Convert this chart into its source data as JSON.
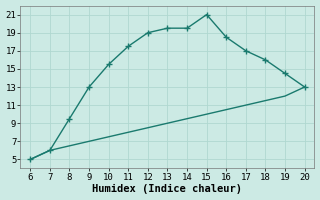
{
  "xlabel": "Humidex (Indice chaleur)",
  "bg_color": "#cceae4",
  "line_color": "#1a7a6e",
  "grid_color": "#b0d8d0",
  "x_upper": [
    6,
    7,
    8,
    9,
    10,
    11,
    12,
    13,
    14,
    15,
    16,
    17,
    18,
    19,
    20
  ],
  "y_upper": [
    5,
    6,
    9.5,
    13,
    15.5,
    17.5,
    19.0,
    19.5,
    19.5,
    21,
    18.5,
    17,
    16.0,
    14.5,
    13
  ],
  "x_lower": [
    6,
    7,
    8,
    9,
    10,
    11,
    12,
    13,
    14,
    15,
    16,
    17,
    18,
    19,
    20
  ],
  "y_lower": [
    5,
    6,
    6.5,
    7.0,
    7.5,
    8.0,
    8.5,
    9.0,
    9.5,
    10.0,
    10.5,
    11.0,
    11.5,
    12.0,
    13.0
  ],
  "xlim": [
    5.5,
    20.5
  ],
  "ylim": [
    4,
    22
  ],
  "xticks": [
    6,
    7,
    8,
    9,
    10,
    11,
    12,
    13,
    14,
    15,
    16,
    17,
    18,
    19,
    20
  ],
  "yticks": [
    5,
    7,
    9,
    11,
    13,
    15,
    17,
    19,
    21
  ],
  "tick_fontsize": 6.5,
  "label_fontsize": 7.5
}
